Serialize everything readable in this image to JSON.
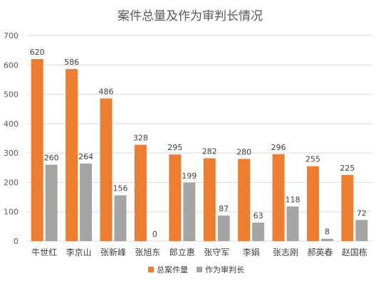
{
  "chart_data": {
    "type": "bar",
    "title": "案件总量及作为审判长情况",
    "categories": [
      "牛世红",
      "李京山",
      "张新峰",
      "张旭东",
      "郎立惠",
      "张守军",
      "李娟",
      "张志刚",
      "郝英春",
      "赵国栋"
    ],
    "series": [
      {
        "name": "总案件量",
        "color": "#ED7D31",
        "values": [
          620,
          586,
          486,
          328,
          295,
          282,
          280,
          296,
          255,
          225
        ]
      },
      {
        "name": "作为审判长",
        "color": "#A5A5A5",
        "values": [
          260,
          264,
          156,
          0,
          199,
          87,
          63,
          118,
          8,
          72
        ]
      }
    ],
    "ylim": [
      0,
      700
    ],
    "yticks": [
      0,
      100,
      200,
      300,
      400,
      500,
      600,
      700
    ],
    "grid": true,
    "legend_position": "bottom"
  }
}
